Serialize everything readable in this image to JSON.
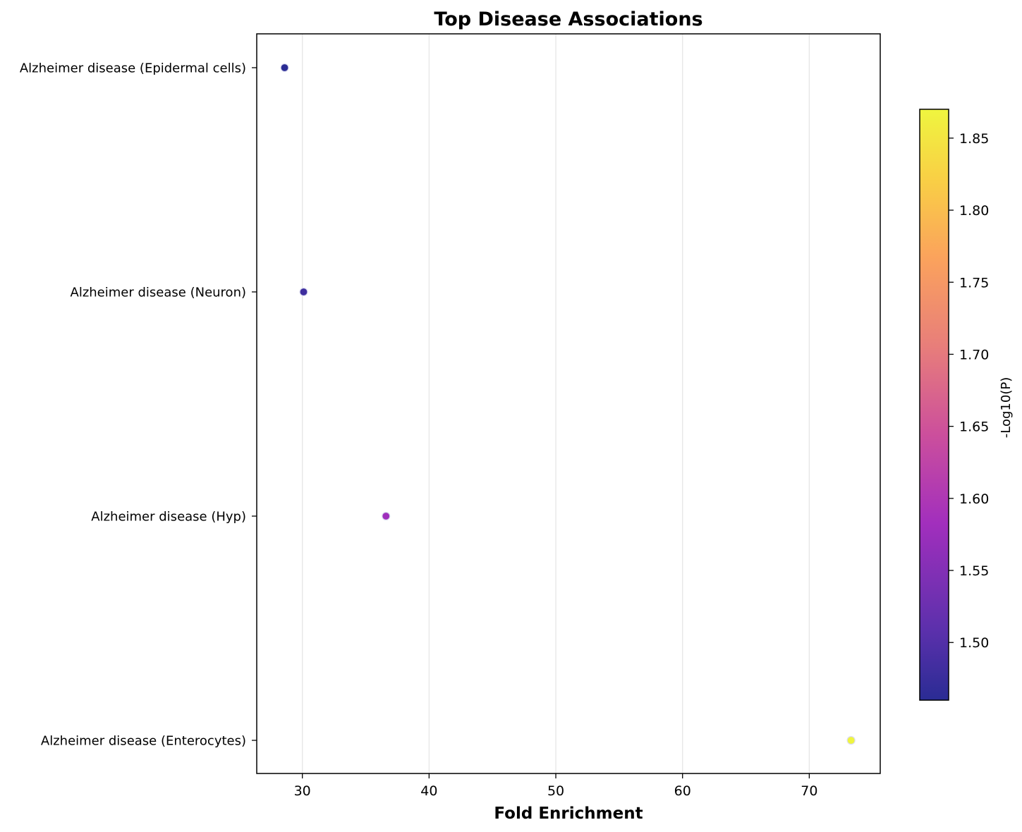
{
  "chart_data": {
    "type": "scatter",
    "title": "Top Disease Associations",
    "xlabel": "Fold Enrichment",
    "ylabel": "",
    "xlim": [
      26.4,
      75.6
    ],
    "xticks": [
      30,
      40,
      50,
      60,
      70
    ],
    "categories": [
      "Alzheimer disease (Epidermal cells)",
      "Alzheimer disease (Neuron)",
      "Alzheimer disease (Hyp)",
      "Alzheimer disease (Enterocytes)"
    ],
    "points": [
      {
        "category": "Alzheimer disease (Epidermal cells)",
        "fold_enrichment": 28.6,
        "neg_log10_p": 1.46
      },
      {
        "category": "Alzheimer disease (Neuron)",
        "fold_enrichment": 30.1,
        "neg_log10_p": 1.48
      },
      {
        "category": "Alzheimer disease (Hyp)",
        "fold_enrichment": 36.6,
        "neg_log10_p": 1.58
      },
      {
        "category": "Alzheimer disease (Enterocytes)",
        "fold_enrichment": 73.3,
        "neg_log10_p": 1.87
      }
    ],
    "grid": "vertical",
    "colorbar": {
      "label": "-Log10(P)",
      "colormap": "plasma",
      "range": [
        1.46,
        1.87
      ],
      "ticks": [
        1.5,
        1.55,
        1.6,
        1.65,
        1.7,
        1.75,
        1.8,
        1.85
      ],
      "tick_labels": [
        "1.50",
        "1.55",
        "1.60",
        "1.65",
        "1.70",
        "1.75",
        "1.80",
        "1.85"
      ]
    }
  }
}
